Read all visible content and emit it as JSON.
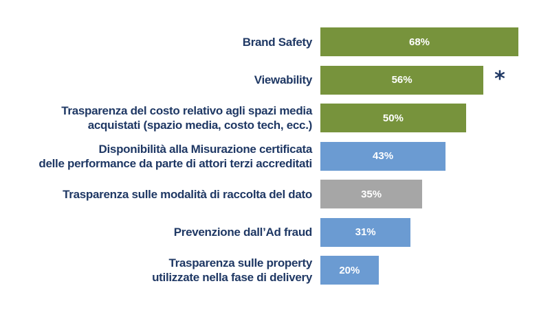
{
  "chart_data": {
    "type": "bar",
    "orientation": "horizontal",
    "categories": [
      "Brand Safety",
      "Viewability",
      "Trasparenza del costo relativo agli spazi media\nacquistati (spazio media, costo tech, ecc.)",
      "Disponibilità alla Misurazione certificata\ndelle performance da parte di attori terzi accreditati",
      "Trasparenza sulle modalità di raccolta del dato",
      "Prevenzione dall’Ad fraud",
      "Trasparenza sulle property\nutilizzate nella fase di delivery"
    ],
    "values": [
      68,
      56,
      50,
      43,
      35,
      31,
      20
    ],
    "data_labels": [
      "68%",
      "56%",
      "50%",
      "43%",
      "35%",
      "31%",
      "20%"
    ],
    "colors": [
      "#77933c",
      "#77933c",
      "#77933c",
      "#6b9bd2",
      "#a6a6a6",
      "#6b9bd2",
      "#6b9bd2"
    ],
    "xlim": [
      0,
      70
    ],
    "annotations": [
      {
        "category_index": 1,
        "text": "*"
      }
    ],
    "grid": false,
    "legend": "none"
  }
}
